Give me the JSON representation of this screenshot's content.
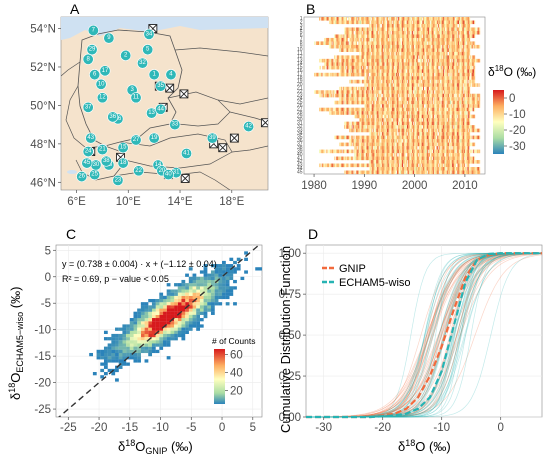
{
  "panels": {
    "A": "A",
    "B": "B",
    "C": "C",
    "D": "D"
  },
  "colors": {
    "land": "#f5e3cc",
    "water": "#cfe1f2",
    "border": "#555555",
    "station": "#2fb8b8",
    "gnip": "#f26a3d",
    "echam": "#26b3b3",
    "dashed": "#333333"
  },
  "panelA": {
    "type": "map",
    "xticks": [
      "6°E",
      "10°E",
      "14°E",
      "18°E"
    ],
    "yticks": [
      "54°N",
      "52°N",
      "50°N",
      "48°N",
      "46°N"
    ],
    "stations": [
      {
        "id": "1",
        "lon": 12.0,
        "lat": 51.6
      },
      {
        "id": "2",
        "lon": 9.8,
        "lat": 52.6
      },
      {
        "id": "3",
        "lon": 10.3,
        "lat": 50.8
      },
      {
        "id": "4",
        "lon": 13.3,
        "lat": 51.6
      },
      {
        "id": "5",
        "lon": 11.5,
        "lat": 52.9
      },
      {
        "id": "6",
        "lon": 7.4,
        "lat": 51.6
      },
      {
        "id": "7",
        "lon": 7.3,
        "lat": 53.9
      },
      {
        "id": "8",
        "lon": 6.9,
        "lat": 52.4
      },
      {
        "id": "9",
        "lon": 8.5,
        "lat": 53.5
      },
      {
        "id": "10",
        "lon": 7.9,
        "lat": 51.1
      },
      {
        "id": "11",
        "lon": 10.6,
        "lat": 50.4
      },
      {
        "id": "12",
        "lon": 8.0,
        "lat": 50.4
      },
      {
        "id": "13",
        "lon": 11.8,
        "lat": 49.6
      },
      {
        "id": "14",
        "lon": 12.3,
        "lat": 46.9
      },
      {
        "id": "15",
        "lon": 9.6,
        "lat": 47.8
      },
      {
        "id": "16",
        "lon": 9.2,
        "lat": 49.3
      },
      {
        "id": "17",
        "lon": 8.2,
        "lat": 51.8
      },
      {
        "id": "18",
        "lon": 9.6,
        "lat": 47.0
      },
      {
        "id": "19",
        "lon": 12.0,
        "lat": 48.3
      },
      {
        "id": "20",
        "lon": 12.6,
        "lat": 46.6
      },
      {
        "id": "21",
        "lon": 8.0,
        "lat": 47.7
      },
      {
        "id": "22",
        "lon": 10.8,
        "lat": 46.6
      },
      {
        "id": "23",
        "lon": 9.2,
        "lat": 46.1
      },
      {
        "id": "24",
        "lon": 6.9,
        "lat": 47.6
      },
      {
        "id": "25",
        "lon": 7.4,
        "lat": 46.4
      },
      {
        "id": "26",
        "lon": 6.4,
        "lat": 46.3
      },
      {
        "id": "27",
        "lon": 10.6,
        "lat": 48.2
      },
      {
        "id": "28",
        "lon": 8.5,
        "lat": 46.9
      },
      {
        "id": "29",
        "lon": 7.2,
        "lat": 52.9
      },
      {
        "id": "30",
        "lon": 7.5,
        "lat": 46.9
      },
      {
        "id": "31",
        "lon": 13.7,
        "lat": 46.5
      },
      {
        "id": "32",
        "lon": 11.1,
        "lat": 52.2
      },
      {
        "id": "33",
        "lon": 13.6,
        "lat": 49.0
      },
      {
        "id": "34",
        "lon": 11.6,
        "lat": 53.7
      },
      {
        "id": "35",
        "lon": 12.5,
        "lat": 51.0
      },
      {
        "id": "36",
        "lon": 8.8,
        "lat": 49.4
      },
      {
        "id": "37",
        "lon": 6.9,
        "lat": 49.9
      },
      {
        "id": "38",
        "lon": 8.3,
        "lat": 47.1
      },
      {
        "id": "39",
        "lon": 16.5,
        "lat": 48.3
      },
      {
        "id": "40",
        "lon": 13.1,
        "lat": 46.4
      },
      {
        "id": "41",
        "lon": 14.5,
        "lat": 47.5
      },
      {
        "id": "42",
        "lon": 19.3,
        "lat": 48.9
      },
      {
        "id": "43",
        "lon": 7.1,
        "lat": 48.3
      },
      {
        "id": "44",
        "lon": 12.5,
        "lat": 49.8
      },
      {
        "id": "45",
        "lon": 6.8,
        "lat": 47.0
      }
    ],
    "crosses": [
      {
        "lon": 11.9,
        "lat": 54.0
      },
      {
        "lon": 12.4,
        "lat": 51.0
      },
      {
        "lon": 13.2,
        "lat": 50.9
      },
      {
        "lon": 14.3,
        "lat": 50.6
      },
      {
        "lon": 12.7,
        "lat": 49.9
      },
      {
        "lon": 7.1,
        "lat": 47.6
      },
      {
        "lon": 9.4,
        "lat": 47.3
      },
      {
        "lon": 16.6,
        "lat": 48.0
      },
      {
        "lon": 17.3,
        "lat": 47.8
      },
      {
        "lon": 18.2,
        "lat": 48.3
      },
      {
        "lon": 20.6,
        "lat": 49.1
      },
      {
        "lon": 13.1,
        "lat": 46.4
      },
      {
        "lon": 14.4,
        "lat": 46.2
      }
    ]
  },
  "panelB": {
    "type": "heatmap",
    "xticks": [
      "1980",
      "1990",
      "2000",
      "2010"
    ],
    "xlim": [
      1978,
      2014
    ],
    "legend_title_prefix": "δ",
    "legend_title_sup": "18",
    "legend_title_suffix": "O (‰)",
    "legend_ticks": [
      "0",
      "-10",
      "-20",
      "-30"
    ],
    "legend_values": [
      0,
      -10,
      -20,
      -30
    ],
    "station_count": 45
  },
  "panelC": {
    "type": "heatmap",
    "equation": "y = (0.738 ± 0.004) · x + (−1.12 ± 0.04)",
    "r2": "R² = 0.69, p − value < 0.05",
    "legend_title": "# of Counts",
    "legend_ticks": [
      "60",
      "40",
      "20"
    ],
    "legend_values": [
      60,
      40,
      20
    ],
    "xticks": [
      "-25",
      "-20",
      "-15",
      "-10",
      "-5",
      "0",
      "5"
    ],
    "xtick_values": [
      -25,
      -20,
      -15,
      -10,
      -5,
      0,
      5
    ],
    "yticks": [
      "5",
      "0",
      "-5",
      "-10",
      "-15",
      "-20",
      "-25"
    ],
    "ytick_values": [
      5,
      0,
      -5,
      -10,
      -15,
      -20,
      -25
    ],
    "xlim": [
      -27,
      6.5
    ],
    "ylim": [
      -26.5,
      6
    ],
    "xlabel_main": "δ",
    "xlabel_sup": "18",
    "xlabel_O": "O",
    "xlabel_sub": "GNIP",
    "xlabel_unit": " (‰)",
    "ylabel_main": "δ",
    "ylabel_sup": "18",
    "ylabel_O": "O",
    "ylabel_sub": "ECHAM5−wiso",
    "ylabel_unit": " (‰)",
    "chart_data": {
      "type": "heatmap",
      "regression": {
        "slope": 0.738,
        "intercept": -1.12
      },
      "one_to_one_line": true
    }
  },
  "panelD": {
    "type": "line",
    "ylabel": "Cumulative Distribution Function",
    "xlabel_main": "δ",
    "xlabel_sup": "18",
    "xlabel_rest": "O (‰)",
    "xticks": [
      "-30",
      "-20",
      "-10",
      "0"
    ],
    "xtick_values": [
      -30,
      -20,
      -10,
      0
    ],
    "yticks": [
      "1.00",
      "0.75",
      "0.50",
      "0.25",
      "0.00"
    ],
    "ytick_values": [
      1.0,
      0.75,
      0.5,
      0.25,
      0.0
    ],
    "xlim": [
      -33,
      7
    ],
    "ylim": [
      0,
      1.05
    ],
    "legend": [
      "GNIP",
      "ECHAM5-wiso"
    ],
    "chart_data": {
      "type": "line",
      "series": [
        {
          "name": "GNIP",
          "x": [
            -22,
            -18,
            -16,
            -14,
            -12,
            -10,
            -8,
            -6,
            -4,
            -2,
            0
          ],
          "y": [
            0.0,
            0.02,
            0.05,
            0.12,
            0.25,
            0.43,
            0.65,
            0.85,
            0.96,
            0.99,
            1.0
          ]
        },
        {
          "name": "ECHAM5-wiso",
          "x": [
            -22,
            -18,
            -16,
            -14,
            -12,
            -10,
            -8,
            -6,
            -4,
            -2,
            0
          ],
          "y": [
            0.0,
            0.01,
            0.02,
            0.05,
            0.12,
            0.28,
            0.55,
            0.82,
            0.96,
            0.995,
            1.0
          ]
        }
      ]
    }
  }
}
